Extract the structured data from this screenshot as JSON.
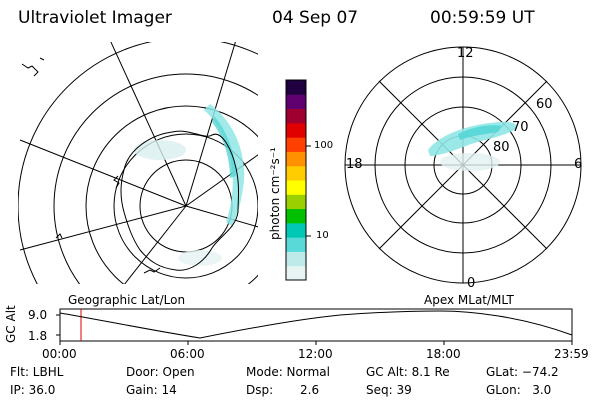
{
  "header": {
    "title": "Ultraviolet Imager",
    "date": "04 Sep 07",
    "time": "00:59:59 UT"
  },
  "colorbar": {
    "unit_label": "photon cm⁻²s⁻¹",
    "ticks": [
      "100",
      "10"
    ],
    "colors": [
      "#e8f4f4",
      "#bfeaea",
      "#5ad9d9",
      "#00c8b4",
      "#00c000",
      "#9ad000",
      "#ffff00",
      "#ffcc00",
      "#ff9000",
      "#ff4000",
      "#e00000",
      "#a00030",
      "#600070",
      "#200040"
    ]
  },
  "geo_map": {
    "caption": "Geographic Lat/Lon"
  },
  "polar_map": {
    "caption": "Apex MLat/MLT",
    "mlt_labels": {
      "top": "12",
      "bottom": "0",
      "left": "18",
      "right": "6"
    },
    "lat_labels": [
      "60",
      "70",
      "80"
    ]
  },
  "altitude_plot": {
    "ylabel": "GC Alt",
    "y_ticks": [
      "9.0",
      "1.8"
    ],
    "x_ticks": [
      "00:00",
      "06:00",
      "12:00",
      "18:00",
      "23:59"
    ],
    "current_time_marker": "00:59:59"
  },
  "status": {
    "filter": "Flt: LBHL",
    "door": "Door: Open",
    "mode": "Mode: Normal",
    "gc_alt": "GC Alt: 8.1 Re",
    "glat": "GLat: −74.2",
    "ip": "IP: 36.0",
    "gain": "Gain: 14",
    "dsp_label": "Dsp:",
    "dsp_value": "2.6",
    "seq": "Seq: 39",
    "glon": "GLon:   3.0"
  }
}
